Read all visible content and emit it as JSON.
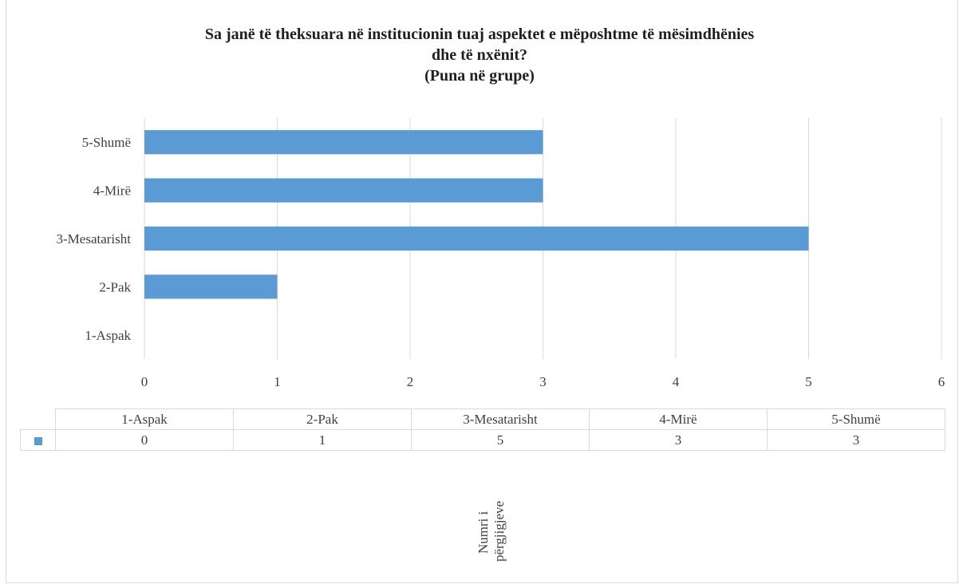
{
  "chart_data": {
    "type": "bar",
    "orientation": "horizontal",
    "title_lines": [
      "Sa janë të theksuara në institucionin tuaj aspektet e mëposhtme të mësimdhënies",
      "dhe të nxënit?",
      "(Puna në grupe)"
    ],
    "categories": [
      "1-Aspak",
      "2-Pak",
      "3-Mesatarisht",
      "4-Mirë",
      "5-Shumë"
    ],
    "series": [
      {
        "values": [
          0,
          1,
          5,
          3,
          3
        ],
        "color": "#5b9bd5"
      }
    ],
    "xlim": [
      0,
      6
    ],
    "x_ticks": [
      "0",
      "1",
      "2",
      "3",
      "4",
      "5",
      "6"
    ],
    "grid": true,
    "data_table": true,
    "axis_title_lines": [
      "Numri i",
      "përgjigjeve"
    ]
  }
}
